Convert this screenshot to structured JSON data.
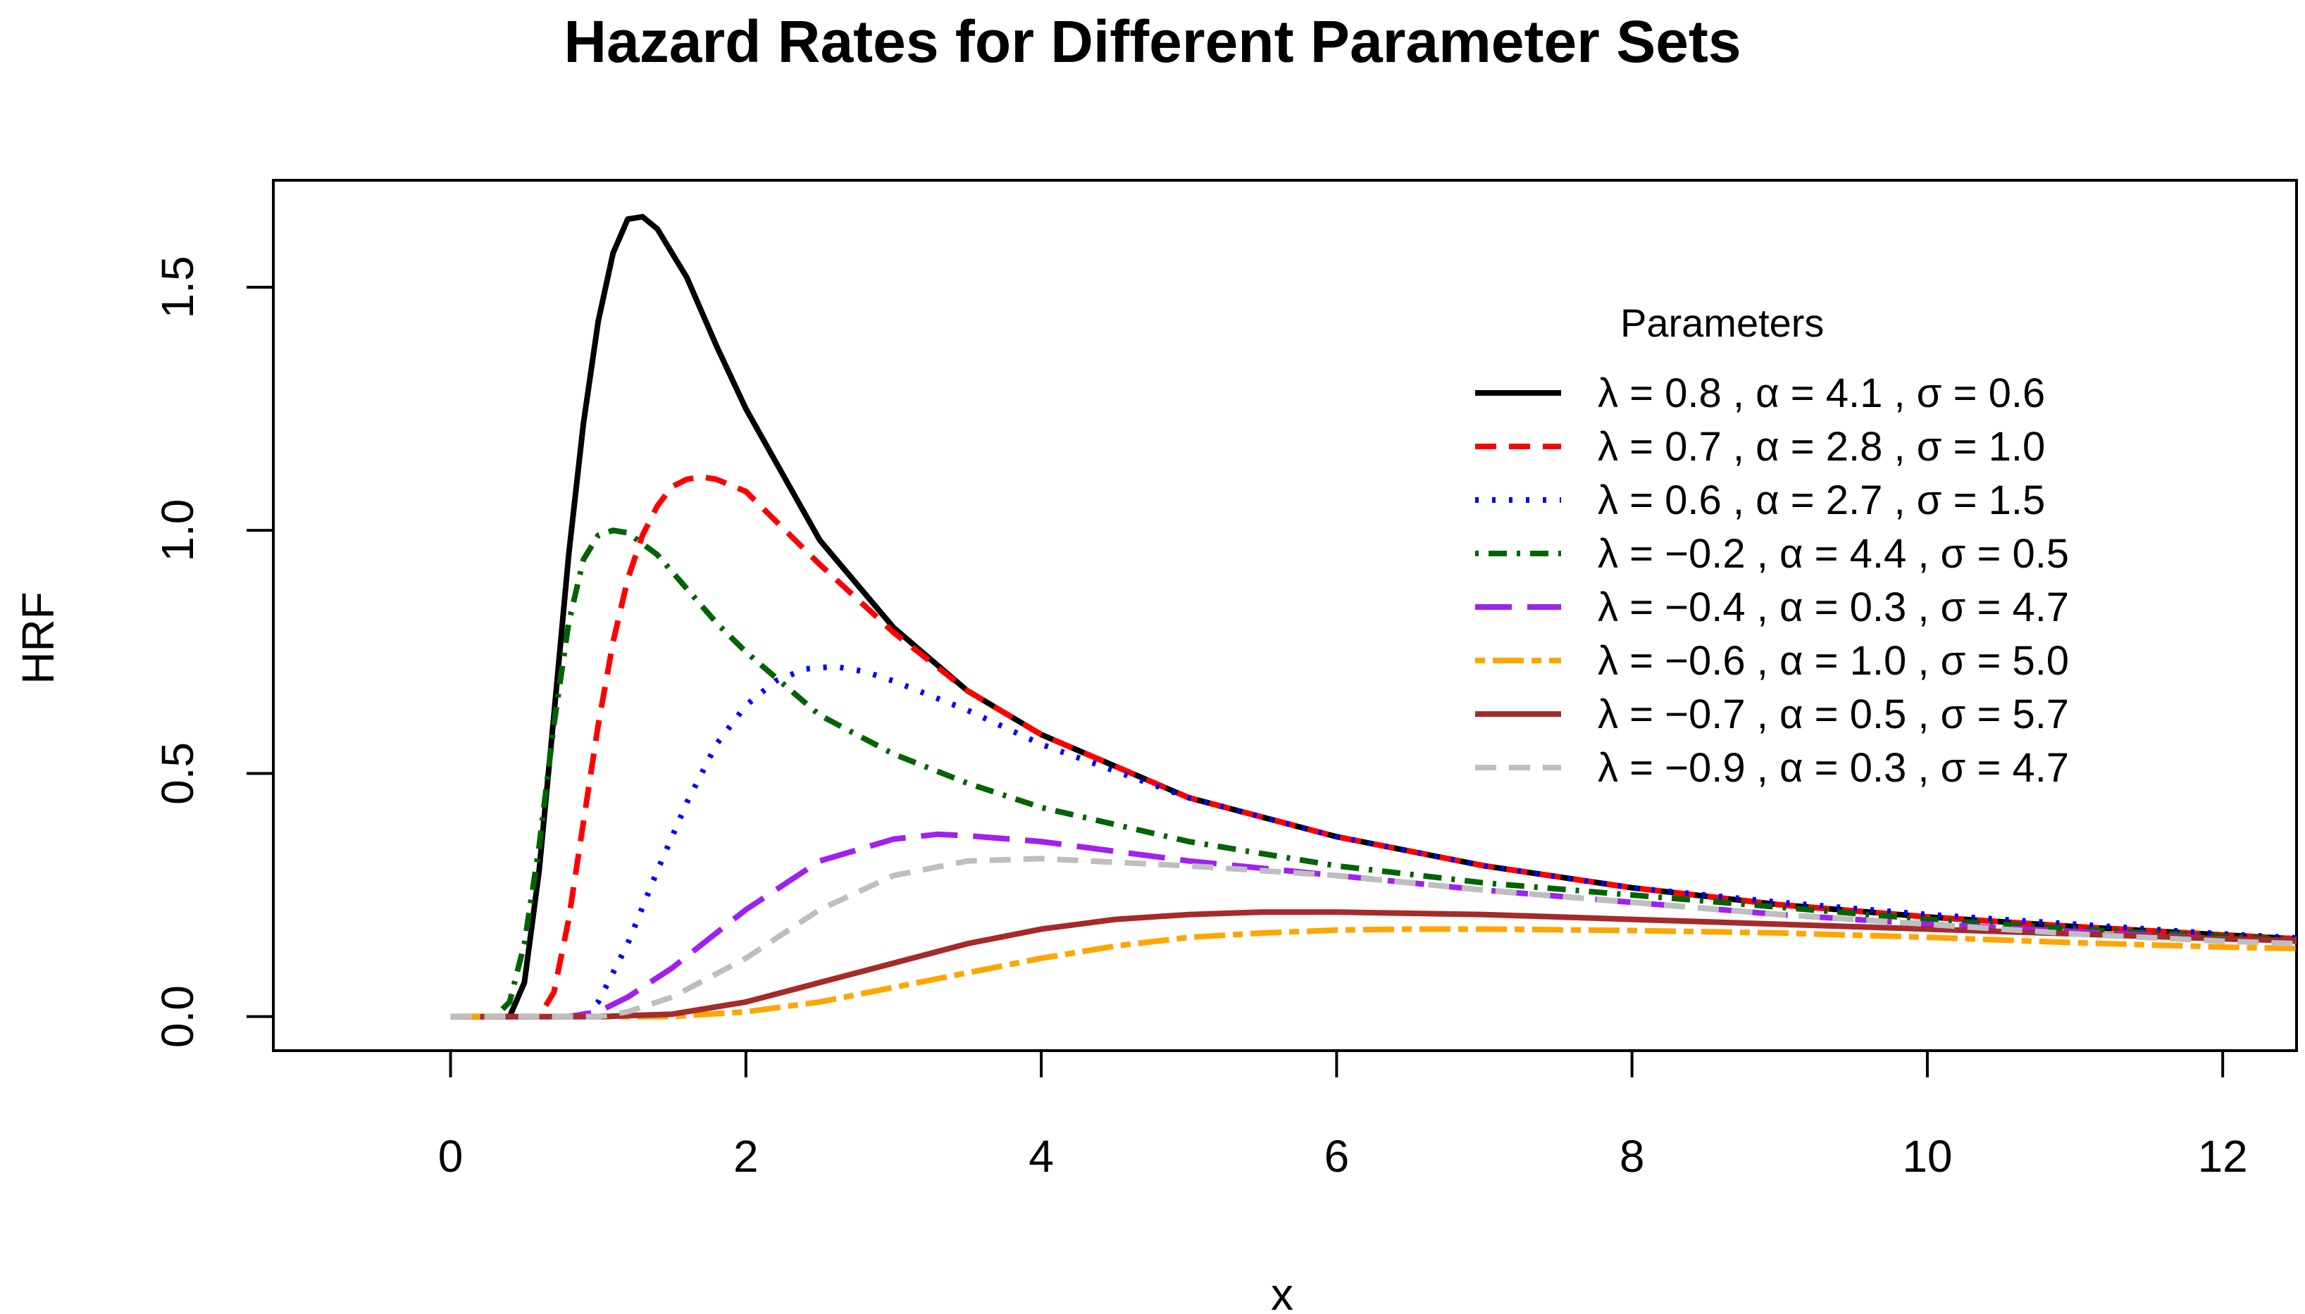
{
  "chart_data": {
    "type": "line",
    "title": "Hazard Rates for Different Parameter Sets",
    "xlabel": "x",
    "ylabel": "HRF",
    "xlim": [
      -1.2,
      12.5
    ],
    "ylim": [
      -0.07,
      1.72
    ],
    "xticks": [
      0,
      2,
      4,
      6,
      8,
      10,
      12
    ],
    "yticks": [
      0.0,
      0.5,
      1.0,
      1.5
    ],
    "xtick_labels": [
      "0",
      "2",
      "4",
      "6",
      "8",
      "10",
      "12"
    ],
    "ytick_labels": [
      "0.0",
      "0.5",
      "1.0",
      "1.5"
    ],
    "grid": false,
    "legend": {
      "title": "Parameters",
      "placement": "top-right"
    },
    "series": [
      {
        "name": "λ = 0.8 ,  α = 4.1 ,  σ = 0.6",
        "color": "#000000",
        "dash": "solid",
        "points": [
          [
            0,
            0
          ],
          [
            0.3,
            0
          ],
          [
            0.4,
            0
          ],
          [
            0.5,
            0.07
          ],
          [
            0.6,
            0.3
          ],
          [
            0.7,
            0.62
          ],
          [
            0.8,
            0.95
          ],
          [
            0.9,
            1.22
          ],
          [
            1.0,
            1.43
          ],
          [
            1.1,
            1.57
          ],
          [
            1.2,
            1.64
          ],
          [
            1.3,
            1.645
          ],
          [
            1.4,
            1.62
          ],
          [
            1.6,
            1.52
          ],
          [
            1.8,
            1.38
          ],
          [
            2.0,
            1.25
          ],
          [
            2.5,
            0.98
          ],
          [
            3.0,
            0.8
          ],
          [
            3.5,
            0.67
          ],
          [
            4.0,
            0.58
          ],
          [
            5.0,
            0.45
          ],
          [
            6.0,
            0.37
          ],
          [
            7.0,
            0.31
          ],
          [
            8.0,
            0.265
          ],
          [
            9.0,
            0.23
          ],
          [
            10.0,
            0.205
          ],
          [
            11.0,
            0.185
          ],
          [
            12.0,
            0.168
          ],
          [
            12.5,
            0.16
          ]
        ]
      },
      {
        "name": "λ = 0.7 ,  α = 2.8 ,  σ = 1.0",
        "color": "#ff0000",
        "dash": "dashed",
        "points": [
          [
            0,
            0
          ],
          [
            0.6,
            0
          ],
          [
            0.7,
            0.05
          ],
          [
            0.8,
            0.2
          ],
          [
            0.9,
            0.4
          ],
          [
            1.0,
            0.6
          ],
          [
            1.1,
            0.77
          ],
          [
            1.2,
            0.9
          ],
          [
            1.3,
            0.99
          ],
          [
            1.4,
            1.05
          ],
          [
            1.5,
            1.09
          ],
          [
            1.6,
            1.105
          ],
          [
            1.7,
            1.11
          ],
          [
            1.8,
            1.105
          ],
          [
            2.0,
            1.08
          ],
          [
            2.5,
            0.93
          ],
          [
            3.0,
            0.79
          ],
          [
            3.5,
            0.67
          ],
          [
            4.0,
            0.58
          ],
          [
            5.0,
            0.45
          ],
          [
            6.0,
            0.37
          ],
          [
            7.0,
            0.31
          ],
          [
            8.0,
            0.265
          ],
          [
            9.0,
            0.23
          ],
          [
            10.0,
            0.205
          ],
          [
            11.0,
            0.185
          ],
          [
            12.0,
            0.168
          ],
          [
            12.5,
            0.16
          ]
        ]
      },
      {
        "name": "λ = 0.6 ,  α = 2.7 ,  σ = 1.5",
        "color": "#0000ff",
        "dash": "dotted",
        "points": [
          [
            0,
            0
          ],
          [
            0.9,
            0
          ],
          [
            1.0,
            0.03
          ],
          [
            1.2,
            0.15
          ],
          [
            1.4,
            0.3
          ],
          [
            1.6,
            0.44
          ],
          [
            1.8,
            0.56
          ],
          [
            2.0,
            0.64
          ],
          [
            2.2,
            0.69
          ],
          [
            2.4,
            0.715
          ],
          [
            2.6,
            0.72
          ],
          [
            2.8,
            0.71
          ],
          [
            3.0,
            0.69
          ],
          [
            3.5,
            0.63
          ],
          [
            4.0,
            0.56
          ],
          [
            5.0,
            0.45
          ],
          [
            6.0,
            0.37
          ],
          [
            7.0,
            0.31
          ],
          [
            8.0,
            0.265
          ],
          [
            9.0,
            0.235
          ],
          [
            10.0,
            0.21
          ],
          [
            11.0,
            0.19
          ],
          [
            12.0,
            0.17
          ],
          [
            12.5,
            0.162
          ]
        ]
      },
      {
        "name": "λ = −0.2 ,  α = 4.4 ,  σ = 0.5",
        "color": "#006400",
        "dash": "dotdash",
        "points": [
          [
            0,
            0
          ],
          [
            0.3,
            0
          ],
          [
            0.4,
            0.03
          ],
          [
            0.5,
            0.15
          ],
          [
            0.6,
            0.35
          ],
          [
            0.7,
            0.6
          ],
          [
            0.8,
            0.81
          ],
          [
            0.9,
            0.94
          ],
          [
            1.0,
            0.99
          ],
          [
            1.1,
            1.0
          ],
          [
            1.2,
            0.995
          ],
          [
            1.4,
            0.95
          ],
          [
            1.6,
            0.88
          ],
          [
            1.8,
            0.81
          ],
          [
            2.0,
            0.75
          ],
          [
            2.5,
            0.62
          ],
          [
            3.0,
            0.54
          ],
          [
            3.5,
            0.48
          ],
          [
            4.0,
            0.43
          ],
          [
            5.0,
            0.36
          ],
          [
            6.0,
            0.31
          ],
          [
            7.0,
            0.275
          ],
          [
            8.0,
            0.25
          ],
          [
            9.0,
            0.225
          ],
          [
            10.0,
            0.2
          ],
          [
            11.0,
            0.18
          ],
          [
            12.0,
            0.165
          ],
          [
            12.5,
            0.158
          ]
        ]
      },
      {
        "name": "λ = −0.4 ,  α = 0.3 ,  σ = 4.7",
        "color": "#a020f0",
        "dash": "longdash",
        "points": [
          [
            0,
            0
          ],
          [
            0.8,
            0
          ],
          [
            1.0,
            0.01
          ],
          [
            1.2,
            0.04
          ],
          [
            1.5,
            0.1
          ],
          [
            2.0,
            0.22
          ],
          [
            2.5,
            0.32
          ],
          [
            3.0,
            0.365
          ],
          [
            3.3,
            0.375
          ],
          [
            3.5,
            0.372
          ],
          [
            4.0,
            0.36
          ],
          [
            5.0,
            0.32
          ],
          [
            6.0,
            0.29
          ],
          [
            7.0,
            0.26
          ],
          [
            8.0,
            0.235
          ],
          [
            9.0,
            0.21
          ],
          [
            10.0,
            0.19
          ],
          [
            11.0,
            0.175
          ],
          [
            12.0,
            0.16
          ],
          [
            12.5,
            0.155
          ]
        ]
      },
      {
        "name": "λ = −0.6 ,  α = 1.0 ,  σ = 5.0",
        "color": "#ffa500",
        "dash": "twodash",
        "points": [
          [
            0,
            0
          ],
          [
            1.5,
            0
          ],
          [
            2.0,
            0.01
          ],
          [
            2.5,
            0.03
          ],
          [
            3.0,
            0.06
          ],
          [
            3.5,
            0.09
          ],
          [
            4.0,
            0.12
          ],
          [
            4.5,
            0.145
          ],
          [
            5.0,
            0.163
          ],
          [
            5.5,
            0.172
          ],
          [
            6.0,
            0.178
          ],
          [
            6.5,
            0.18
          ],
          [
            7.0,
            0.18
          ],
          [
            8.0,
            0.177
          ],
          [
            9.0,
            0.172
          ],
          [
            10.0,
            0.163
          ],
          [
            11.0,
            0.152
          ],
          [
            12.0,
            0.143
          ],
          [
            12.5,
            0.14
          ]
        ]
      },
      {
        "name": "λ = −0.7 ,  α = 0.5 ,  σ = 5.7",
        "color": "#a52a2a",
        "dash": "solid",
        "points": [
          [
            0.2,
            0
          ],
          [
            1.0,
            0
          ],
          [
            1.5,
            0.005
          ],
          [
            2.0,
            0.03
          ],
          [
            2.5,
            0.07
          ],
          [
            3.0,
            0.11
          ],
          [
            3.5,
            0.15
          ],
          [
            4.0,
            0.18
          ],
          [
            4.5,
            0.2
          ],
          [
            5.0,
            0.21
          ],
          [
            5.5,
            0.215
          ],
          [
            6.0,
            0.215
          ],
          [
            7.0,
            0.21
          ],
          [
            8.0,
            0.2
          ],
          [
            9.0,
            0.19
          ],
          [
            10.0,
            0.18
          ],
          [
            11.0,
            0.17
          ],
          [
            12.0,
            0.16
          ],
          [
            12.5,
            0.156
          ]
        ]
      },
      {
        "name": "λ = −0.9 ,  α = 0.3 ,  σ = 4.7",
        "color": "#bebebe",
        "dash": "dashed",
        "points": [
          [
            0,
            0
          ],
          [
            1.0,
            0
          ],
          [
            1.2,
            0.01
          ],
          [
            1.5,
            0.04
          ],
          [
            2.0,
            0.12
          ],
          [
            2.5,
            0.22
          ],
          [
            3.0,
            0.29
          ],
          [
            3.5,
            0.32
          ],
          [
            4.0,
            0.325
          ],
          [
            5.0,
            0.31
          ],
          [
            6.0,
            0.29
          ],
          [
            7.0,
            0.26
          ],
          [
            8.0,
            0.235
          ],
          [
            9.0,
            0.21
          ],
          [
            10.0,
            0.19
          ],
          [
            11.0,
            0.17
          ],
          [
            12.0,
            0.155
          ],
          [
            12.5,
            0.15
          ]
        ]
      }
    ]
  }
}
